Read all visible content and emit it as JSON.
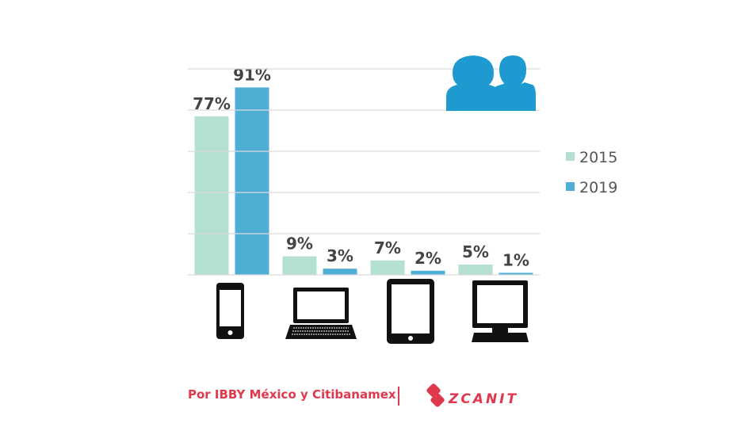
{
  "chart_data": {
    "type": "bar",
    "categories": [
      null,
      null,
      null,
      null
    ],
    "series": [
      {
        "name": "2015",
        "color": "#b3e0d3",
        "values": [
          77,
          9,
          7,
          5
        ],
        "value_labels": [
          "77%",
          "9%",
          "7%",
          "5%"
        ]
      },
      {
        "name": "2019",
        "color": "#4eaed3",
        "values": [
          91,
          3,
          2,
          1
        ],
        "value_labels": [
          "91%",
          "3%",
          "2%",
          "1%"
        ]
      }
    ],
    "ylim": [
      0,
      100
    ],
    "yticks": [
      0,
      20,
      40,
      60,
      80,
      100
    ],
    "grid": true,
    "tick_labels": false,
    "legend": "right",
    "footer": {
      "credit": "Por IBBY México y Citibanamex",
      "logo": "ZCANIT"
    }
  }
}
